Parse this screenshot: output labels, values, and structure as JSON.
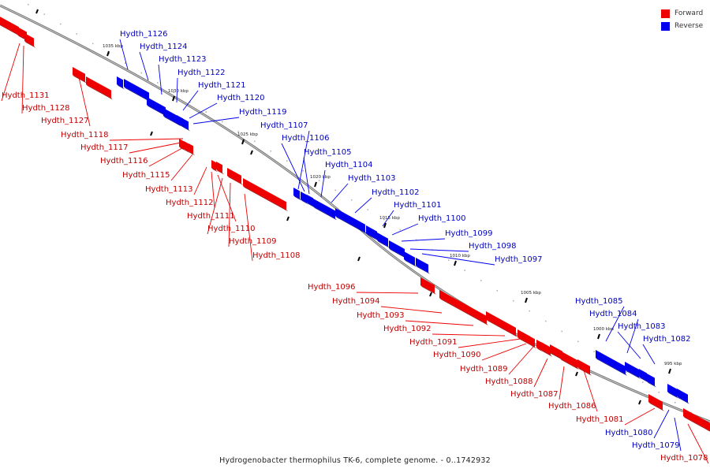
{
  "caption": "Hydrogenobacter thermophilus TK-6, complete genome. - 0..1742932",
  "legend": [
    {
      "label": "Forward",
      "color": "#ee0000"
    },
    {
      "label": "Reverse",
      "color": "#0000ee"
    }
  ],
  "colors": {
    "forward": "#ee0000",
    "reverse": "#0000ee",
    "backbone": "#888888"
  },
  "ticks": [
    "1035 kbp",
    "1030 kbp",
    "1025 kbp",
    "1020 kbp",
    "1015 kbp",
    "1010 kbp",
    "1005 kbp",
    "1000 kbp",
    "995 kbp"
  ],
  "genes": [
    {
      "label": "Hydth_1131",
      "strand": "forward"
    },
    {
      "label": "Hydth_1128",
      "strand": "forward"
    },
    {
      "label": "Hydth_1127",
      "strand": "forward"
    },
    {
      "label": "Hydth_1126",
      "strand": "reverse"
    },
    {
      "label": "Hydth_1124",
      "strand": "reverse"
    },
    {
      "label": "Hydth_1123",
      "strand": "reverse"
    },
    {
      "label": "Hydth_1122",
      "strand": "reverse"
    },
    {
      "label": "Hydth_1121",
      "strand": "reverse"
    },
    {
      "label": "Hydth_1120",
      "strand": "reverse"
    },
    {
      "label": "Hydth_1119",
      "strand": "reverse"
    },
    {
      "label": "Hydth_1118",
      "strand": "forward"
    },
    {
      "label": "Hydth_1117",
      "strand": "forward"
    },
    {
      "label": "Hydth_1116",
      "strand": "forward"
    },
    {
      "label": "Hydth_1115",
      "strand": "forward"
    },
    {
      "label": "Hydth_1113",
      "strand": "forward"
    },
    {
      "label": "Hydth_1112",
      "strand": "forward"
    },
    {
      "label": "Hydth_1111",
      "strand": "forward"
    },
    {
      "label": "Hydth_1110",
      "strand": "forward"
    },
    {
      "label": "Hydth_1109",
      "strand": "forward"
    },
    {
      "label": "Hydth_1108",
      "strand": "forward"
    },
    {
      "label": "Hydth_1107",
      "strand": "reverse"
    },
    {
      "label": "Hydth_1106",
      "strand": "reverse"
    },
    {
      "label": "Hydth_1105",
      "strand": "reverse"
    },
    {
      "label": "Hydth_1104",
      "strand": "reverse"
    },
    {
      "label": "Hydth_1103",
      "strand": "reverse"
    },
    {
      "label": "Hydth_1102",
      "strand": "reverse"
    },
    {
      "label": "Hydth_1101",
      "strand": "reverse"
    },
    {
      "label": "Hydth_1100",
      "strand": "reverse"
    },
    {
      "label": "Hydth_1099",
      "strand": "reverse"
    },
    {
      "label": "Hydth_1098",
      "strand": "reverse"
    },
    {
      "label": "Hydth_1097",
      "strand": "reverse"
    },
    {
      "label": "Hydth_1096",
      "strand": "forward"
    },
    {
      "label": "Hydth_1094",
      "strand": "forward"
    },
    {
      "label": "Hydth_1093",
      "strand": "forward"
    },
    {
      "label": "Hydth_1092",
      "strand": "forward"
    },
    {
      "label": "Hydth_1091",
      "strand": "forward"
    },
    {
      "label": "Hydth_1090",
      "strand": "forward"
    },
    {
      "label": "Hydth_1089",
      "strand": "forward"
    },
    {
      "label": "Hydth_1088",
      "strand": "forward"
    },
    {
      "label": "Hydth_1087",
      "strand": "forward"
    },
    {
      "label": "Hydth_1086",
      "strand": "forward"
    },
    {
      "label": "Hydth_1085",
      "strand": "reverse"
    },
    {
      "label": "Hydth_1084",
      "strand": "reverse"
    },
    {
      "label": "Hydth_1083",
      "strand": "reverse"
    },
    {
      "label": "Hydth_1082",
      "strand": "reverse"
    },
    {
      "label": "Hydth_1081",
      "strand": "forward"
    },
    {
      "label": "Hydth_1080",
      "strand": "reverse"
    },
    {
      "label": "Hydth_1079",
      "strand": "reverse"
    },
    {
      "label": "Hydth_1078",
      "strand": "forward"
    }
  ]
}
